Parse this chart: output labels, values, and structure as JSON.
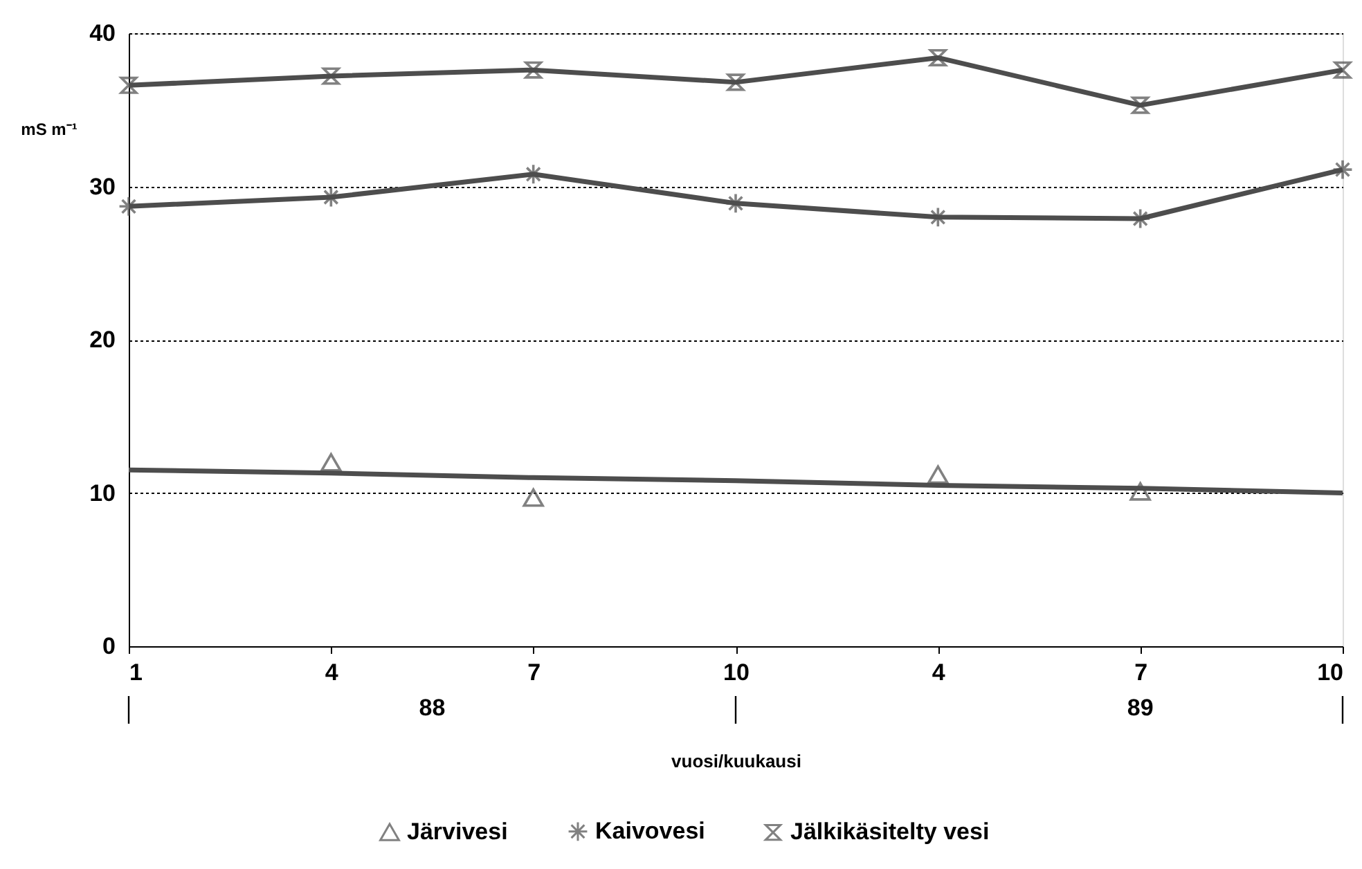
{
  "chart_data": {
    "type": "line",
    "categories": [
      "1",
      "4",
      "7",
      "10",
      "4",
      "7",
      "10"
    ],
    "xlabel": "vuosi/kuukausi",
    "ylabel": "mS m⁻¹",
    "ylim": [
      0,
      40
    ],
    "yticks": [
      0,
      10,
      20,
      30,
      40
    ],
    "grid": "y",
    "legend": "bottom",
    "annotations": [
      "88",
      "89"
    ],
    "series": [
      {
        "name": "Järvivesi",
        "type": "scatter",
        "marker": "triangle",
        "color": "#4d4d4d",
        "values": [
          null,
          12.0,
          9.7,
          null,
          11.2,
          10.1,
          null
        ]
      },
      {
        "marker": "none",
        "color": "#4d4d4d",
        "values": [
          11.5,
          11.3,
          11.0,
          10.8,
          10.5,
          10.3,
          10.0
        ]
      },
      {
        "name": "Kaivovesi",
        "marker": "cross",
        "color": "#4d4d4d",
        "values": [
          28.7,
          29.3,
          30.8,
          28.9,
          28.0,
          27.9,
          31.1
        ]
      },
      {
        "name": "Jälkikäsitelty vesi",
        "marker": "diamond",
        "color": "#4d4d4d",
        "values": [
          36.6,
          37.2,
          37.6,
          36.8,
          38.4,
          35.3,
          37.6
        ]
      }
    ]
  }
}
